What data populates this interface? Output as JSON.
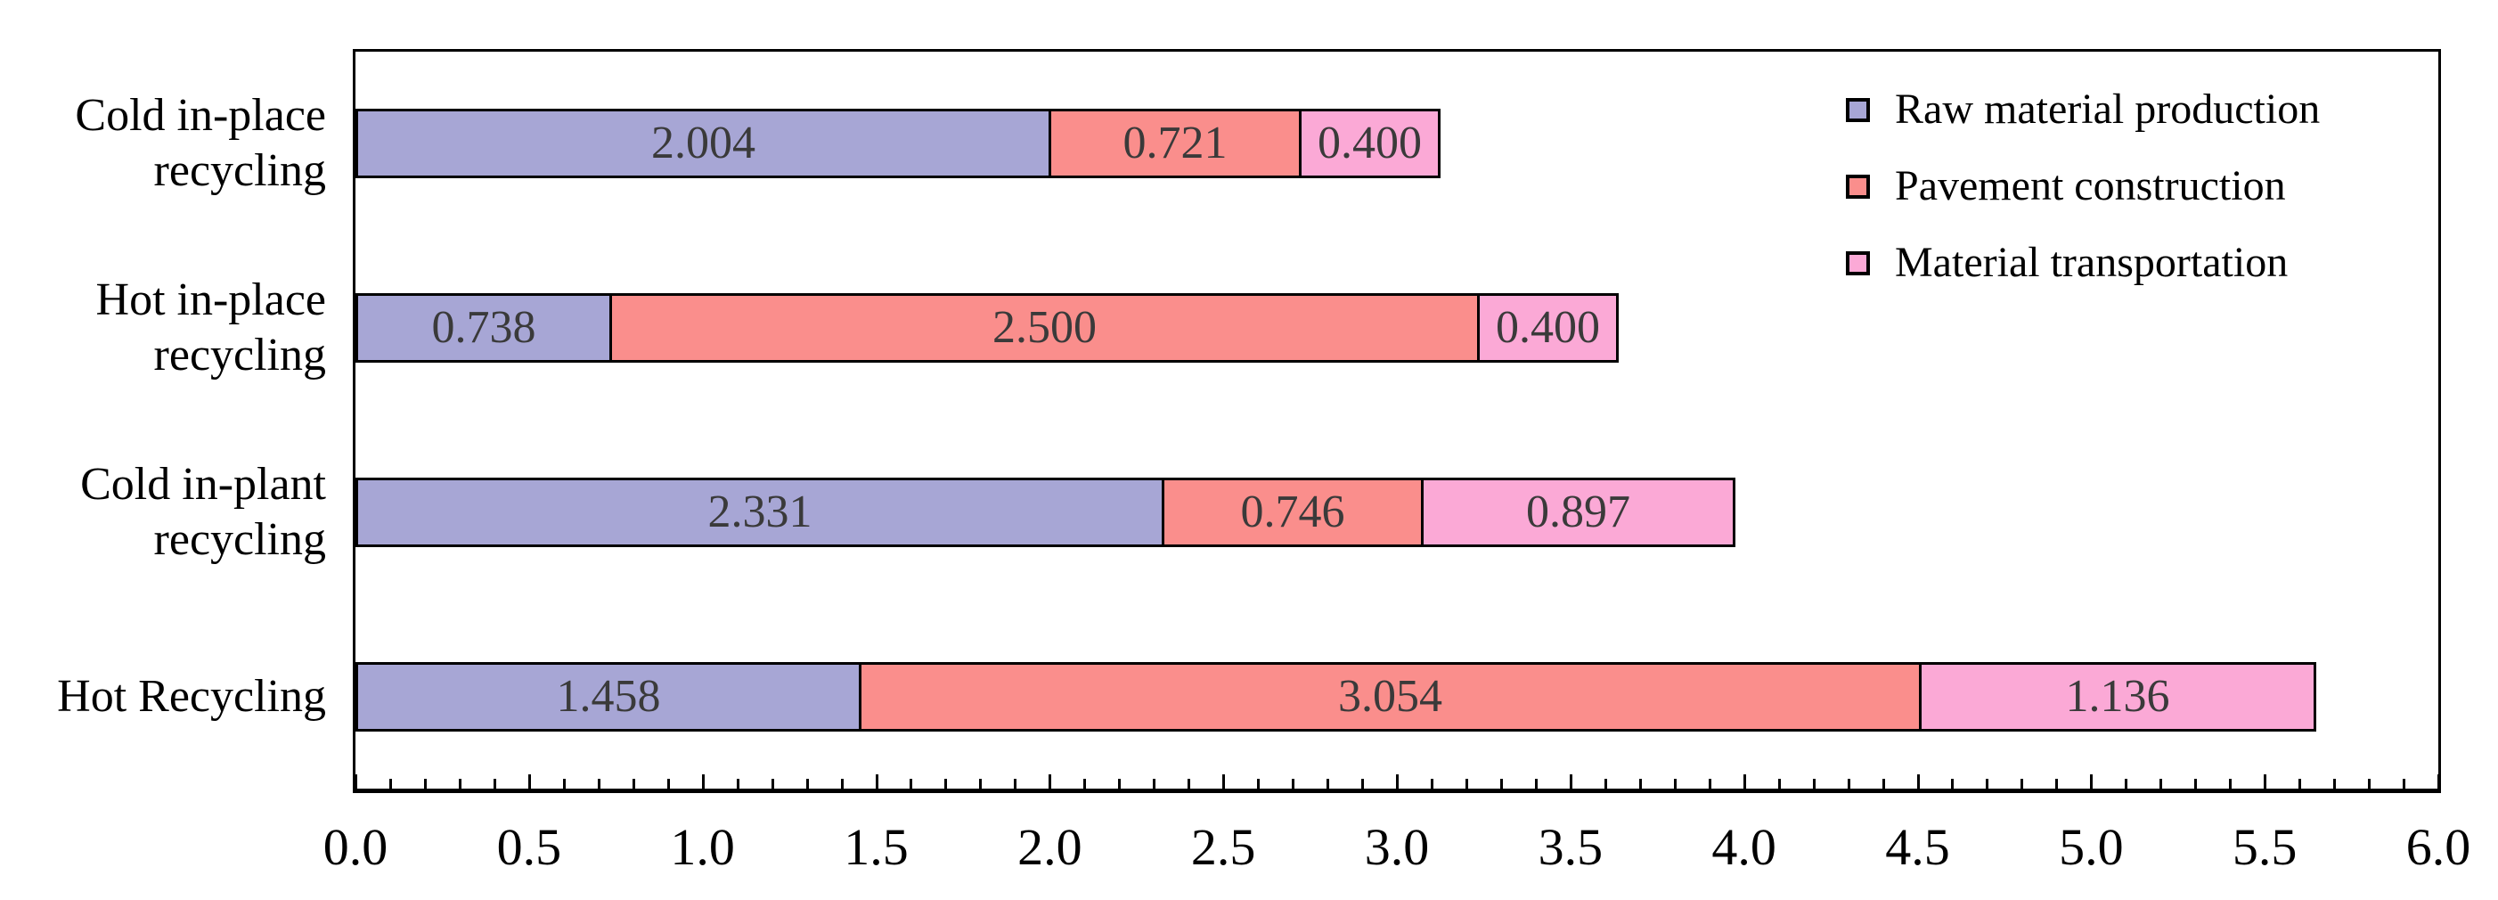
{
  "chart_data": {
    "type": "bar",
    "orientation": "horizontal",
    "stacked": true,
    "title": "",
    "xlabel": "",
    "ylabel": "",
    "grid": false,
    "legend_position": "top-right-inside",
    "xlim": [
      0.0,
      6.0
    ],
    "x_major_step": 0.5,
    "x_minor_step": 0.1,
    "x_tick_labels": [
      "0.0",
      "0.5",
      "1.0",
      "1.5",
      "2.0",
      "2.5",
      "3.0",
      "3.5",
      "4.0",
      "4.5",
      "5.0",
      "5.5",
      "6.0"
    ],
    "categories": [
      "Cold in-place recycling",
      "Hot in-place recycling",
      "Cold in-plant recycling",
      "Hot Recycling"
    ],
    "category_display_labels": [
      "Cold in-place\nrecycling",
      "Hot in-place\nrecycling",
      "Cold in-plant\nrecycling",
      "Hot Recycling"
    ],
    "series": [
      {
        "name": "Raw material production",
        "color": "#a7a6d5",
        "values": [
          2.004,
          0.738,
          2.331,
          1.458
        ]
      },
      {
        "name": "Pavement construction",
        "color": "#fa8e8c",
        "values": [
          0.721,
          2.5,
          0.746,
          3.054
        ]
      },
      {
        "name": "Material transportation",
        "color": "#fba9d6",
        "values": [
          0.4,
          0.4,
          0.897,
          1.136
        ]
      }
    ],
    "value_labels": [
      [
        "2.004",
        "0.721",
        "0.400"
      ],
      [
        "0.738",
        "2.500",
        "0.400"
      ],
      [
        "2.331",
        "0.746",
        "0.897"
      ],
      [
        "1.458",
        "3.054",
        "1.136"
      ]
    ],
    "colors": {
      "bar_border": "#000000",
      "value_text": "#3a3a3a",
      "axis": "#000000",
      "background": "#ffffff"
    }
  }
}
